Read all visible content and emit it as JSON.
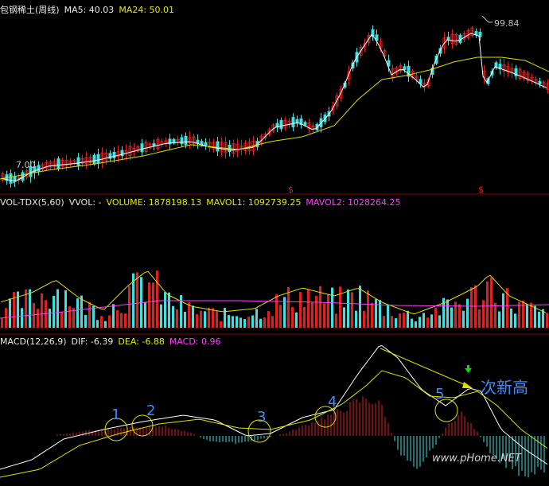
{
  "panels": {
    "price": {
      "stock_name": "包钢稀土(周线)",
      "ma5_label": "MA5: 40.03",
      "ma24_label": "MA24: 50.01",
      "high_label": "99.84",
      "low_label": "7.00",
      "dividend_marker": "$"
    },
    "volume": {
      "indicator": "VOL-TDX(5,60)",
      "vvol": "VVOL: -",
      "volume": "VOLUME: 1878198.13",
      "mavol1": "MAVOL1: 1092739.25",
      "mavol2": "MAVOL2: 1028264.25"
    },
    "macd": {
      "indicator": "MACD(12,26,9)",
      "dif": "DIF: -6.39",
      "dea": "DEA: -6.88",
      "macd": "MACD: 0.96"
    }
  },
  "annotations": {
    "circle_labels": [
      "1",
      "2",
      "3",
      "4",
      "5"
    ],
    "new_high_text": "次新高",
    "watermark": "www.pHome.NET"
  },
  "colors": {
    "up": "#e02020",
    "down": "#40e0e0",
    "ma_white": "#ffffff",
    "ma_yellow": "#e0e000",
    "mavol2_magenta": "#ff40ff",
    "annotation_blue": "#3c8cff",
    "divider": "#8b0000"
  }
}
